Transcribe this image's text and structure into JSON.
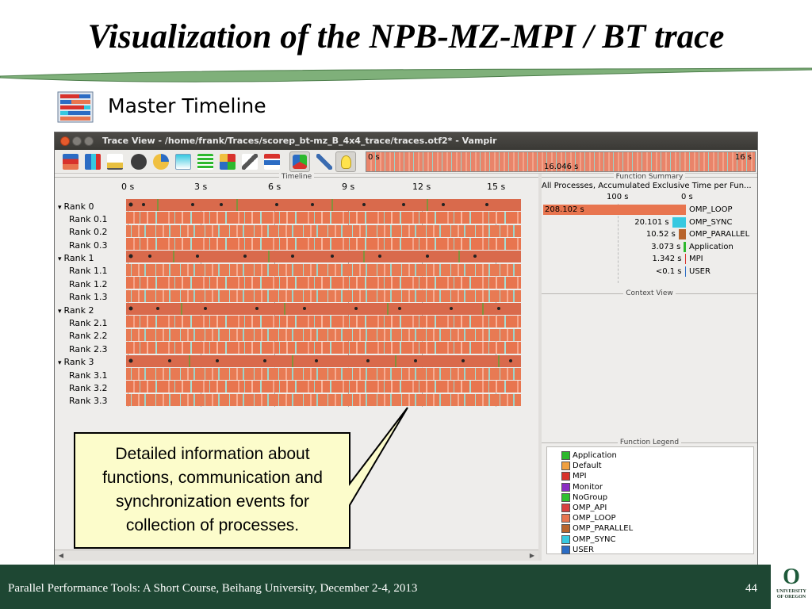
{
  "slide": {
    "title": "Visualization of the NPB-MZ-MPI / BT trace",
    "section_heading": "Master Timeline",
    "callout": "Detailed information about functions, communication and synchronization events for collection of processes.",
    "footer": "Parallel Performance Tools: A Short Course, Beihang University, December 2-4, 2013",
    "page_number": "44",
    "logo_text": "UNIVERSITY\nOF OREGON"
  },
  "window": {
    "title": "Trace View - /home/frank/Traces/scorep_bt-mz_B_4x4_trace/traces.otf2* - Vampir",
    "toolbar_icons": [
      "master-timeline-icon",
      "process-timeline-icon",
      "counter-timeline-icon",
      "performance-radar-icon",
      "function-summary-icon",
      "message-summary-icon",
      "communication-matrix-icon",
      "io-summary-icon",
      "call-tree-icon",
      "process-summary-icon",
      "grouping-icon",
      "pin-icon",
      "lightbulb-icon"
    ],
    "overview": {
      "start": "0 s",
      "end": "16 s",
      "duration": "16.046 s"
    }
  },
  "timeline": {
    "header": "Timeline",
    "ticks": [
      "0 s",
      "3 s",
      "6 s",
      "9 s",
      "12 s",
      "15 s"
    ],
    "ranks": [
      {
        "label": "Rank 0",
        "threads": [
          "Rank 0.1",
          "Rank 0.2",
          "Rank 0.3"
        ]
      },
      {
        "label": "Rank 1",
        "threads": [
          "Rank 1.1",
          "Rank 1.2",
          "Rank 1.3"
        ]
      },
      {
        "label": "Rank 2",
        "threads": [
          "Rank 2.1",
          "Rank 2.2",
          "Rank 2.3"
        ]
      },
      {
        "label": "Rank 3",
        "threads": [
          "Rank 3.1",
          "Rank 3.2",
          "Rank 3.3"
        ]
      }
    ]
  },
  "function_summary": {
    "header": "Function Summary",
    "subtitle": "All Processes, Accumulated Exclusive Time per Fun...",
    "axis": [
      "100 s",
      "0 s"
    ],
    "rows": [
      {
        "value": "208.102 s",
        "name": "OMP_LOOP",
        "seconds": 208.102,
        "color": "#e8754f"
      },
      {
        "value": "20.101 s",
        "name": "OMP_SYNC",
        "seconds": 20.101,
        "color": "#36c8e0"
      },
      {
        "value": "10.52 s",
        "name": "OMP_PARALLEL",
        "seconds": 10.52,
        "color": "#b8642c"
      },
      {
        "value": "3.073 s",
        "name": "Application",
        "seconds": 3.073,
        "color": "#2db82d"
      },
      {
        "value": "1.342 s",
        "name": "MPI",
        "seconds": 1.342,
        "color": "#d8322c"
      },
      {
        "value": "<0.1 s",
        "name": "USER",
        "seconds": 0.05,
        "color": "#2b6cc4"
      }
    ]
  },
  "context_view": {
    "header": "Context View"
  },
  "function_legend": {
    "header": "Function Legend",
    "items": [
      {
        "name": "Application",
        "color": "#2db82d"
      },
      {
        "name": "Default",
        "color": "#f0a040"
      },
      {
        "name": "MPI",
        "color": "#d8322c"
      },
      {
        "name": "Monitor",
        "color": "#8a2ec4"
      },
      {
        "name": "NoGroup",
        "color": "#30c030"
      },
      {
        "name": "OMP_API",
        "color": "#d84040"
      },
      {
        "name": "OMP_LOOP",
        "color": "#e8754f"
      },
      {
        "name": "OMP_PARALLEL",
        "color": "#b8642c"
      },
      {
        "name": "OMP_SYNC",
        "color": "#36c8e0"
      },
      {
        "name": "USER",
        "color": "#2b6cc4"
      }
    ]
  },
  "colors": {
    "footer": "#1e4733",
    "brand_green": "#1e5a3a",
    "omp_loop": "#e8754f"
  }
}
